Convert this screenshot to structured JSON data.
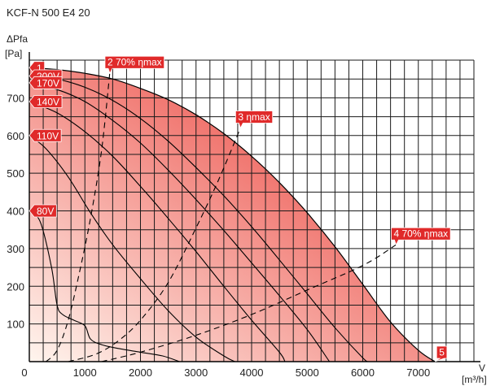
{
  "chart_data": {
    "type": "line",
    "title": "KCF-N 500 E4 20",
    "ylabel_top": "ΔPfa",
    "ylabel_unit": "[Pa]",
    "xlabel_top": "V",
    "xlabel_unit": "[m³/h]",
    "xlim": [
      0,
      8000
    ],
    "ylim": [
      0,
      800
    ],
    "x_ticks": [
      0,
      1000,
      2000,
      3000,
      4000,
      5000,
      6000,
      7000
    ],
    "y_ticks": [
      100,
      200,
      300,
      400,
      500,
      600,
      700
    ],
    "grid": true,
    "fill_gradient": [
      "#fff5ee",
      "#e82a24"
    ],
    "flag_color": "#e02a2a",
    "curves": [
      {
        "label": "1",
        "points": [
          [
            0,
            780
          ],
          [
            500,
            775
          ],
          [
            1000,
            765
          ],
          [
            1500,
            750
          ],
          [
            2000,
            725
          ],
          [
            2500,
            695
          ],
          [
            3000,
            655
          ],
          [
            3500,
            605
          ],
          [
            4000,
            545
          ],
          [
            4500,
            475
          ],
          [
            5000,
            395
          ],
          [
            5500,
            305
          ],
          [
            6000,
            205
          ],
          [
            6500,
            105
          ],
          [
            7000,
            30
          ],
          [
            7300,
            0
          ]
        ]
      },
      {
        "label": "200V",
        "points": [
          [
            0,
            760
          ],
          [
            500,
            750
          ],
          [
            1000,
            728
          ],
          [
            1500,
            693
          ],
          [
            2000,
            645
          ],
          [
            2500,
            585
          ],
          [
            3000,
            515
          ],
          [
            3500,
            440
          ],
          [
            4000,
            358
          ],
          [
            4500,
            270
          ],
          [
            5000,
            180
          ],
          [
            5500,
            90
          ],
          [
            6000,
            10
          ],
          [
            6100,
            0
          ]
        ]
      },
      {
        "label": "170V",
        "points": [
          [
            0,
            740
          ],
          [
            500,
            722
          ],
          [
            1000,
            690
          ],
          [
            1500,
            640
          ],
          [
            2000,
            580
          ],
          [
            2500,
            508
          ],
          [
            3000,
            430
          ],
          [
            3500,
            348
          ],
          [
            4000,
            262
          ],
          [
            4500,
            175
          ],
          [
            5000,
            85
          ],
          [
            5400,
            0
          ]
        ]
      },
      {
        "label": "140V",
        "points": [
          [
            0,
            690
          ],
          [
            500,
            660
          ],
          [
            1000,
            610
          ],
          [
            1500,
            545
          ],
          [
            2000,
            465
          ],
          [
            2500,
            380
          ],
          [
            3000,
            292
          ],
          [
            3500,
            200
          ],
          [
            4000,
            110
          ],
          [
            4500,
            25
          ],
          [
            4600,
            0
          ]
        ]
      },
      {
        "label": "110V",
        "points": [
          [
            0,
            600
          ],
          [
            300,
            565
          ],
          [
            700,
            490
          ],
          [
            1100,
            395
          ],
          [
            1500,
            310
          ],
          [
            2000,
            220
          ],
          [
            2500,
            135
          ],
          [
            3000,
            65
          ],
          [
            3500,
            15
          ],
          [
            3700,
            0
          ]
        ]
      },
      {
        "label": "80V",
        "points": [
          [
            0,
            400
          ],
          [
            200,
            370
          ],
          [
            400,
            250
          ],
          [
            500,
            150
          ],
          [
            600,
            125
          ],
          [
            800,
            110
          ],
          [
            1000,
            95
          ],
          [
            1100,
            60
          ],
          [
            1300,
            45
          ],
          [
            1600,
            35
          ],
          [
            2000,
            25
          ],
          [
            2400,
            15
          ],
          [
            2700,
            0
          ]
        ]
      }
    ],
    "efficiency_curves": [
      {
        "label": "2 70% ηmax",
        "points": [
          [
            300,
            0
          ],
          [
            500,
            30
          ],
          [
            700,
            110
          ],
          [
            900,
            235
          ],
          [
            1100,
            380
          ],
          [
            1300,
            560
          ],
          [
            1450,
            770
          ]
        ]
      },
      {
        "label": "3 ηmax",
        "points": [
          [
            700,
            0
          ],
          [
            1200,
            20
          ],
          [
            1600,
            55
          ],
          [
            2000,
            110
          ],
          [
            2500,
            210
          ],
          [
            3000,
            355
          ],
          [
            3400,
            480
          ],
          [
            3800,
            620
          ]
        ]
      },
      {
        "label": "4 70% ηmax",
        "points": [
          [
            1300,
            0
          ],
          [
            2000,
            25
          ],
          [
            3000,
            70
          ],
          [
            4000,
            125
          ],
          [
            5000,
            190
          ],
          [
            6000,
            255
          ],
          [
            6600,
            310
          ]
        ]
      }
    ],
    "flags": [
      {
        "text": "1",
        "anchor": "left",
        "x": 0,
        "y": 780
      },
      {
        "text": "200V",
        "anchor": "left",
        "x": 0,
        "y": 758
      },
      {
        "text": "170V",
        "anchor": "left",
        "x": 0,
        "y": 740
      },
      {
        "text": "140V",
        "anchor": "left",
        "x": 0,
        "y": 690
      },
      {
        "text": "110V",
        "anchor": "left",
        "x": 0,
        "y": 600
      },
      {
        "text": "80V",
        "anchor": "left",
        "x": 0,
        "y": 400
      },
      {
        "text": "2 70% ηmax",
        "anchor": "tip",
        "x": 1450,
        "y": 765
      },
      {
        "text": "3 ηmax",
        "anchor": "tip",
        "x": 3800,
        "y": 620
      },
      {
        "text": "4 70% ηmax",
        "anchor": "tip",
        "x": 6600,
        "y": 310
      },
      {
        "text": "5",
        "anchor": "tip",
        "x": 7300,
        "y": 0
      }
    ]
  }
}
